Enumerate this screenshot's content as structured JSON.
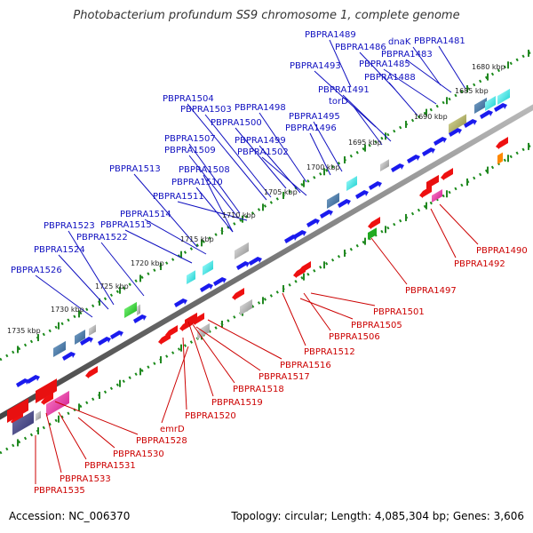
{
  "title": "Photobacterium profundum SS9 chromosome 1, complete genome",
  "footer": {
    "accession": "Accession: NC_006370",
    "topology": "Topology: circular; Length: 4,085,304 bp; Genes: 3,606"
  },
  "colors": {
    "forward_label": "#1010c0",
    "reverse_label": "#cc0000",
    "backbone": "#888888",
    "tick": "#338833"
  },
  "kbp_marks": [
    {
      "text": "1680 kbp"
    },
    {
      "text": "1685 kbp"
    },
    {
      "text": "1690 kbp"
    },
    {
      "text": "1695 kbp"
    },
    {
      "text": "1700 kbp"
    },
    {
      "text": "1705 kbp"
    },
    {
      "text": "1710 kbp"
    },
    {
      "text": "1715 kbp"
    },
    {
      "text": "1720 kbp"
    },
    {
      "text": "1725 kbp"
    },
    {
      "text": "1730 kbp"
    },
    {
      "text": "1735 kbp"
    }
  ],
  "forward_genes": [
    "PBPRA1489",
    "PBPRA1486",
    "dnaK",
    "PBPRA1481",
    "PBPRA1483",
    "PBPRA1493",
    "PBPRA1485",
    "PBPRA1488",
    "PBPRA1491",
    "torD",
    "PBPRA1504",
    "PBPRA1503",
    "PBPRA1498",
    "PBPRA1500",
    "PBPRA1495",
    "PBPRA1496",
    "PBPRA1507",
    "PBPRA1499",
    "PBPRA1509",
    "PBPRA1502",
    "PBPRA1513",
    "PBPRA1508",
    "PBPRA1510",
    "PBPRA1511",
    "PBPRA1514",
    "PBPRA1515",
    "PBPRA1523",
    "PBPRA1522",
    "PBPRA1524",
    "PBPRA1526"
  ],
  "reverse_genes": [
    "PBPRA1490",
    "PBPRA1492",
    "PBPRA1497",
    "PBPRA1501",
    "PBPRA1505",
    "PBPRA1506",
    "PBPRA1512",
    "PBPRA1516",
    "PBPRA1517",
    "PBPRA1518",
    "PBPRA1519",
    "PBPRA1520",
    "emrD",
    "PBPRA1528",
    "PBPRA1530",
    "PBPRA1531",
    "PBPRA1533",
    "PBPRA1535"
  ]
}
